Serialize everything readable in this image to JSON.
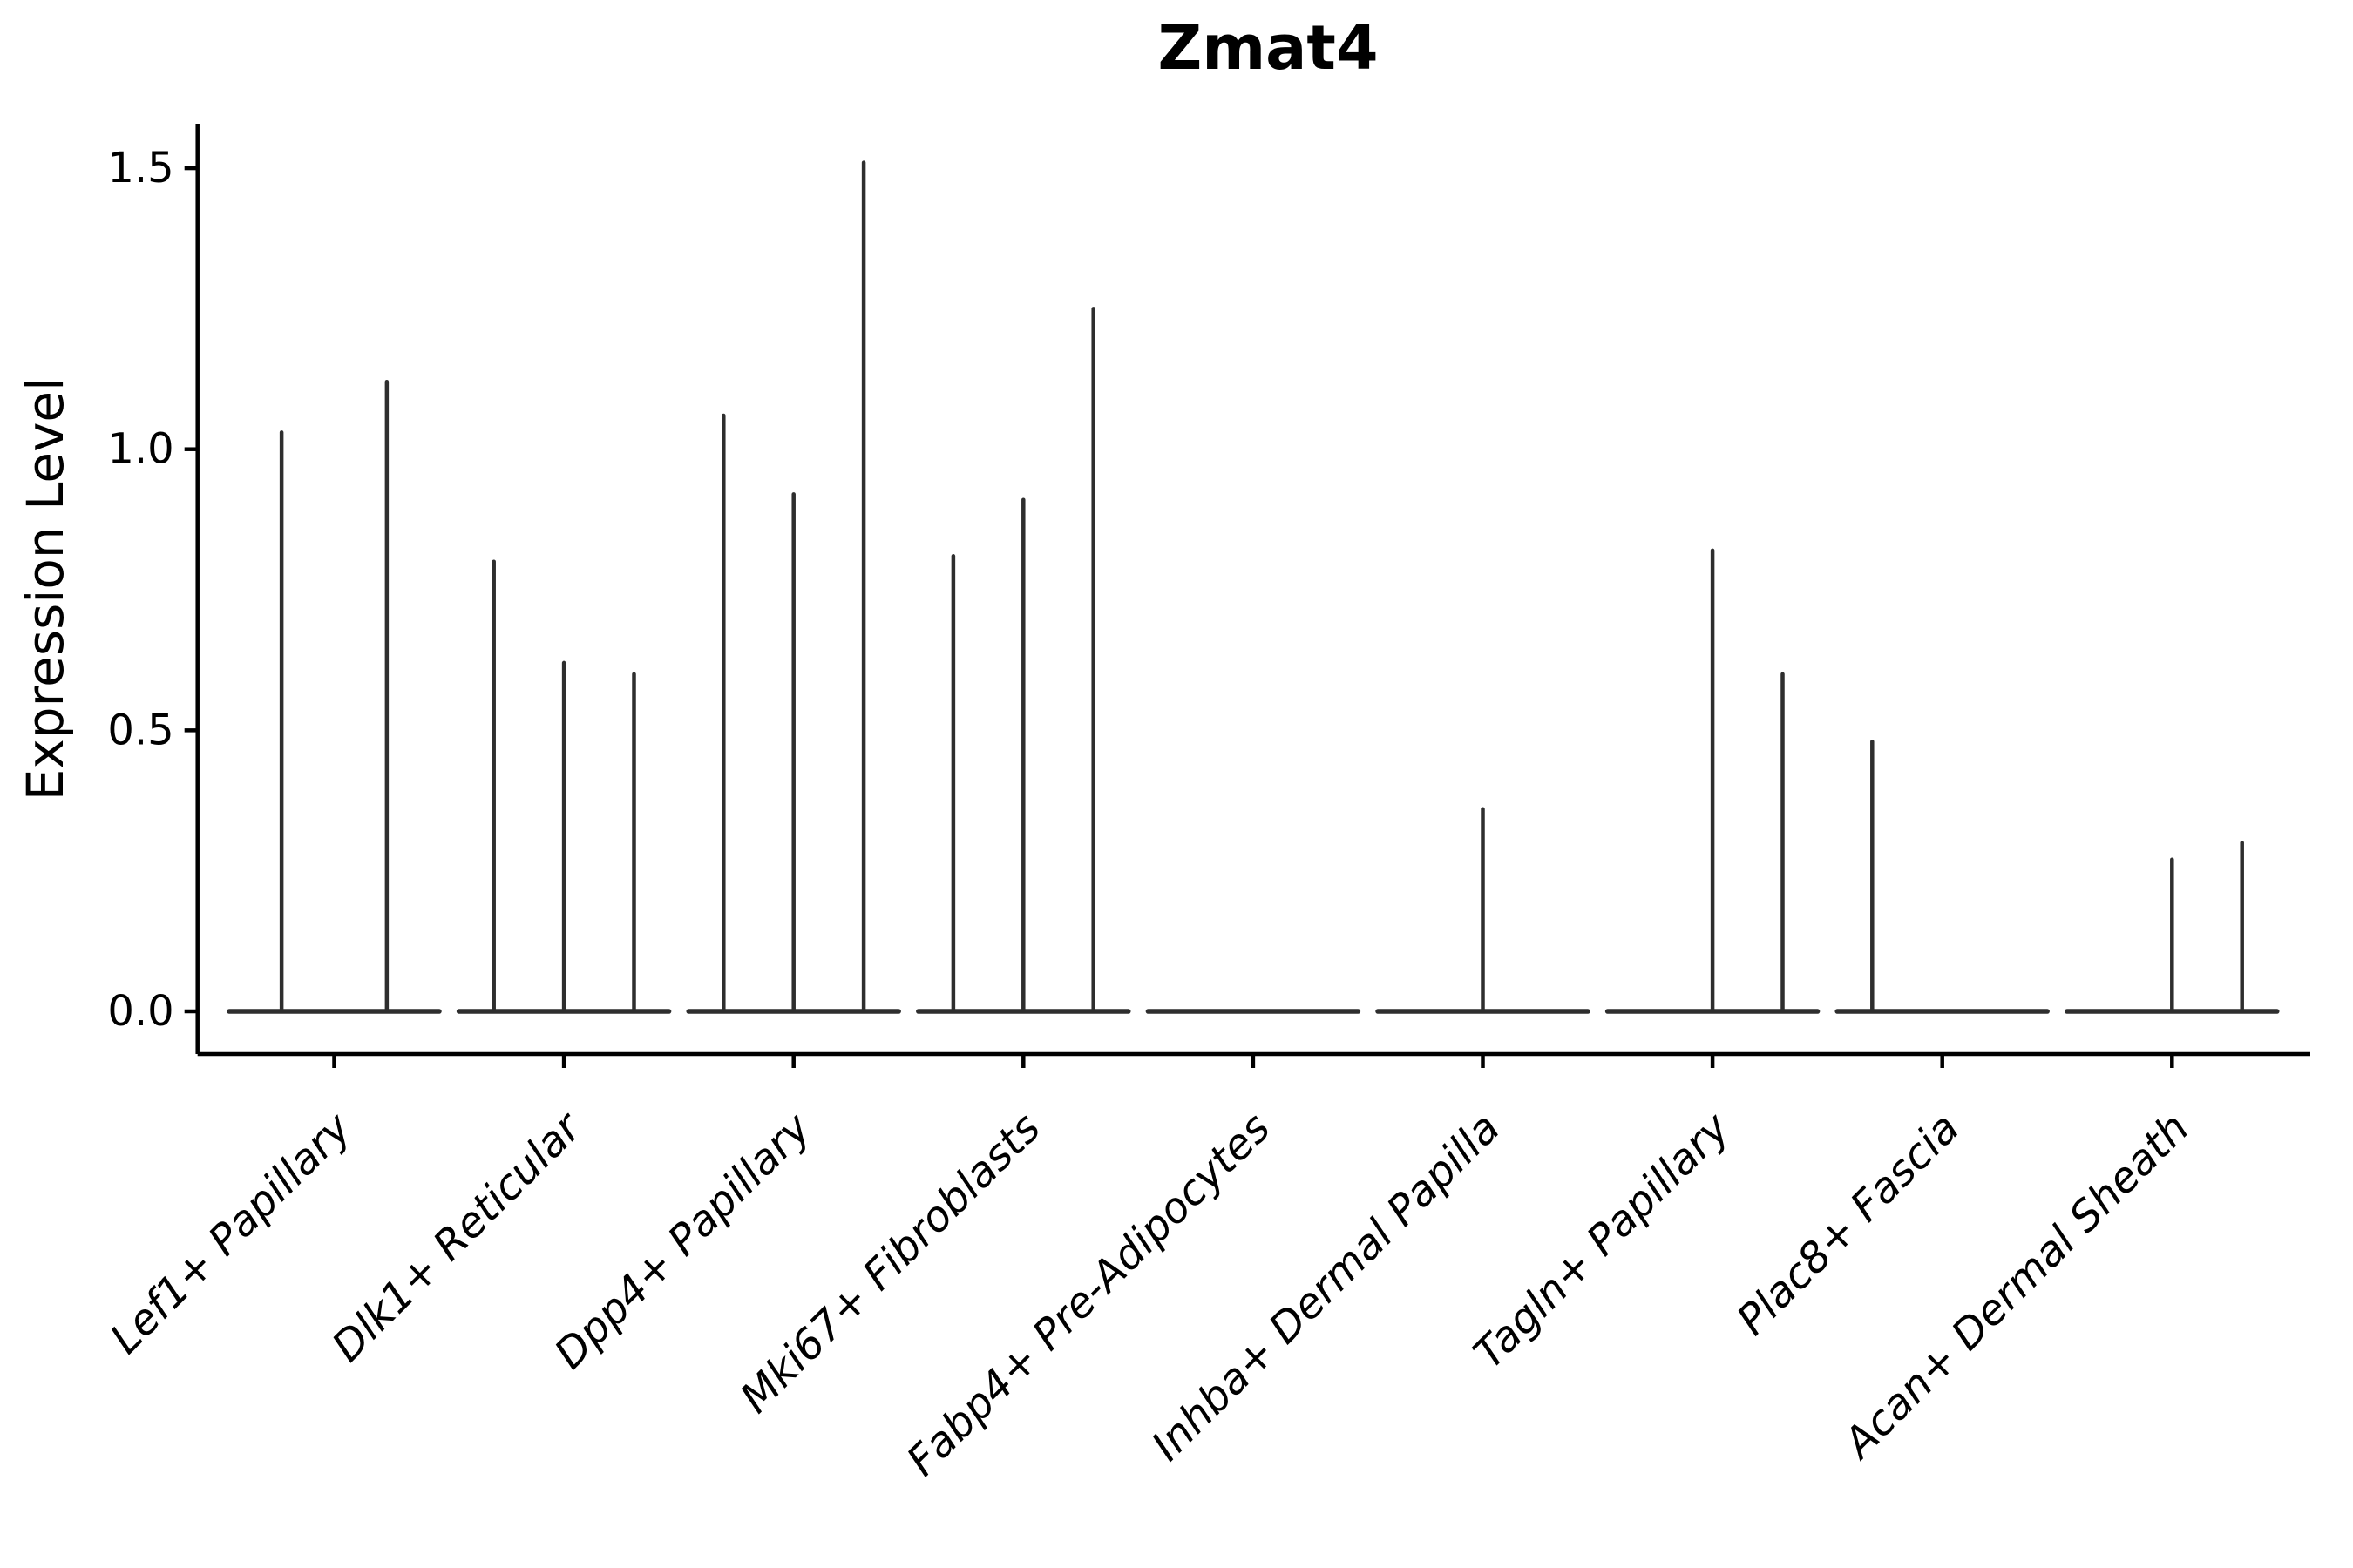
{
  "figure": {
    "background": "#ffffff"
  },
  "colors": {
    "axis": "#000000",
    "violin": "#2e2e2e"
  },
  "chart_data": {
    "type": "violin",
    "title": "Zmat4",
    "xlabel": "",
    "ylabel": "Expression Level",
    "ylim": [
      -0.074,
      1.579
    ],
    "yticks": [
      0.0,
      0.5,
      1.0,
      1.5
    ],
    "ytick_labels": [
      "0.0",
      "0.5",
      "1.0",
      "1.5"
    ],
    "grid": false,
    "legend": "none",
    "categories": [
      "Lef1+ Papillary",
      "Dlk1+ Reticular",
      "Dpp4+ Papillary",
      "Mki67+ Fibroblasts",
      "Fabp4+ Pre-Adipocytes",
      "Inhba+ Dermal Papilla",
      "Tagln+ Papillary",
      "Plac8+ Fascia",
      "Acan+ Dermal Sheath"
    ],
    "groups": [
      {
        "label": "Lef1+ Papillary",
        "violins": [
          {
            "dx": -0.229,
            "peak": 1.03
          },
          {
            "dx": 0.229,
            "peak": 1.12
          }
        ]
      },
      {
        "label": "Dlk1+ Reticular",
        "violins": [
          {
            "dx": -0.305,
            "peak": 0.8
          },
          {
            "dx": 0.0,
            "peak": 0.62
          },
          {
            "dx": 0.305,
            "peak": 0.6
          }
        ]
      },
      {
        "label": "Dpp4+ Papillary",
        "violins": [
          {
            "dx": -0.305,
            "peak": 1.06
          },
          {
            "dx": 0.0,
            "peak": 0.92
          },
          {
            "dx": 0.305,
            "peak": 1.51
          }
        ]
      },
      {
        "label": "Mki67+ Fibroblasts",
        "violins": [
          {
            "dx": -0.305,
            "peak": 0.81
          },
          {
            "dx": 0.0,
            "peak": 0.91
          },
          {
            "dx": 0.305,
            "peak": 1.25
          }
        ]
      },
      {
        "label": "Fabp4+ Pre-Adipocytes",
        "violins": []
      },
      {
        "label": "Inhba+ Dermal Papilla",
        "violins": [
          {
            "dx": 0.0,
            "peak": 0.36
          }
        ]
      },
      {
        "label": "Tagln+ Papillary",
        "violins": [
          {
            "dx": 0.0,
            "peak": 0.82
          },
          {
            "dx": 0.305,
            "peak": 0.6
          }
        ]
      },
      {
        "label": "Plac8+ Fascia",
        "violins": [
          {
            "dx": -0.305,
            "peak": 0.48
          }
        ]
      },
      {
        "label": "Acan+ Dermal Sheath",
        "violins": [
          {
            "dx": 0.0,
            "peak": 0.27
          },
          {
            "dx": 0.305,
            "peak": 0.3
          }
        ]
      }
    ]
  }
}
